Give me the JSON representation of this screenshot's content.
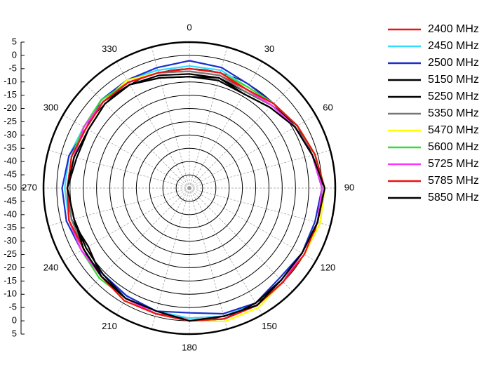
{
  "chart_data": {
    "type": "polar",
    "x": [
      0,
      15,
      30,
      45,
      60,
      75,
      90,
      105,
      120,
      135,
      150,
      165,
      180,
      195,
      210,
      225,
      240,
      255,
      270,
      285,
      300,
      315,
      330,
      345
    ],
    "thetaticks": [
      0,
      30,
      60,
      90,
      120,
      150,
      180,
      210,
      240,
      270,
      300,
      330
    ],
    "rlim": [
      -50,
      5
    ],
    "rticks": [
      5,
      0,
      -5,
      -10,
      -15,
      -20,
      -25,
      -30,
      -35,
      -40,
      -45,
      -50
    ],
    "grid": true,
    "legend": "right",
    "series": [
      {
        "name": "2400 MHz",
        "color": "#ee1111",
        "values": [
          -6,
          -6,
          -7,
          -6,
          -3,
          -1,
          1,
          1,
          0,
          0,
          1,
          0,
          -1,
          -1,
          -2,
          -3,
          -4,
          -3,
          -4,
          -4,
          -5,
          -4,
          -4,
          -5
        ]
      },
      {
        "name": "2450 MHz",
        "color": "#33ddff",
        "values": [
          -4,
          -4,
          -6,
          -5,
          -4,
          -2,
          0,
          0,
          -1,
          -1,
          0,
          0,
          -1,
          -2,
          -3,
          -3,
          -4,
          -3,
          -3,
          -3,
          -4,
          -3,
          -3,
          -4
        ]
      },
      {
        "name": "2500 MHz",
        "color": "#1a2fcc",
        "values": [
          -2,
          -3,
          -5,
          -5,
          -4,
          -2,
          0,
          -1,
          -1,
          -2,
          0,
          -1,
          -3,
          -2,
          -3,
          -4,
          -3,
          -2,
          -2,
          -3,
          -5,
          -3,
          -3,
          -3
        ]
      },
      {
        "name": "5150 MHz",
        "color": "#000000",
        "values": [
          -8,
          -7,
          -9,
          -7,
          -4,
          -2,
          0,
          0,
          -1,
          -1,
          0,
          1,
          0,
          -1,
          -2,
          -4,
          -5,
          -5,
          -4,
          -6,
          -6,
          -5,
          -5,
          -7
        ]
      },
      {
        "name": "5250 MHz",
        "color": "#000000",
        "values": [
          -7,
          -7,
          -8,
          -6,
          -3,
          -2,
          1,
          0,
          -1,
          0,
          1,
          1,
          0,
          -1,
          -2,
          -3,
          -6,
          -4,
          -4,
          -5,
          -4,
          -4,
          -5,
          -6
        ]
      },
      {
        "name": "5350 MHz",
        "color": "#777777",
        "values": [
          -6,
          -6,
          -8,
          -6,
          -4,
          -1,
          0,
          0,
          -1,
          0,
          1,
          0,
          0,
          -1,
          -2,
          -3,
          -4,
          -4,
          -4,
          -4,
          -5,
          -4,
          -4,
          -5
        ]
      },
      {
        "name": "5470 MHz",
        "color": "#ffff00",
        "values": [
          -5,
          -5,
          -6,
          -5,
          -3,
          -1,
          1,
          1,
          0,
          0,
          2,
          2,
          0,
          -1,
          -1,
          -3,
          -3,
          -3,
          -4,
          -4,
          -4,
          -4,
          -3,
          -5
        ]
      },
      {
        "name": "5600 MHz",
        "color": "#33dd33",
        "values": [
          -5,
          -5,
          -6,
          -5,
          -3,
          -1,
          1,
          0,
          -1,
          0,
          1,
          1,
          0,
          -1,
          -2,
          -2,
          -3,
          -3,
          -4,
          -4,
          -4,
          -3,
          -4,
          -5
        ]
      },
      {
        "name": "5725 MHz",
        "color": "#ff33ff",
        "values": [
          -5,
          -5,
          -7,
          -6,
          -4,
          -2,
          0,
          0,
          -1,
          0,
          1,
          1,
          0,
          -1,
          -2,
          -3,
          -3,
          -3,
          -4,
          -5,
          -4,
          -4,
          -4,
          -5
        ]
      },
      {
        "name": "5785 MHz",
        "color": "#ee1111",
        "values": [
          -5,
          -5,
          -7,
          -5,
          -3,
          -1,
          1,
          0,
          0,
          0,
          1,
          1,
          0,
          -1,
          -1,
          -3,
          -4,
          -3,
          -4,
          -4,
          -5,
          -4,
          -4,
          -5
        ]
      },
      {
        "name": "5850 MHz",
        "color": "#000000",
        "values": [
          -8,
          -8,
          -9,
          -7,
          -4,
          -2,
          1,
          0,
          -1,
          -1,
          1,
          0,
          0,
          -2,
          -2,
          -3,
          -4,
          -5,
          -4,
          -5,
          -6,
          -5,
          -5,
          -7
        ]
      }
    ]
  }
}
